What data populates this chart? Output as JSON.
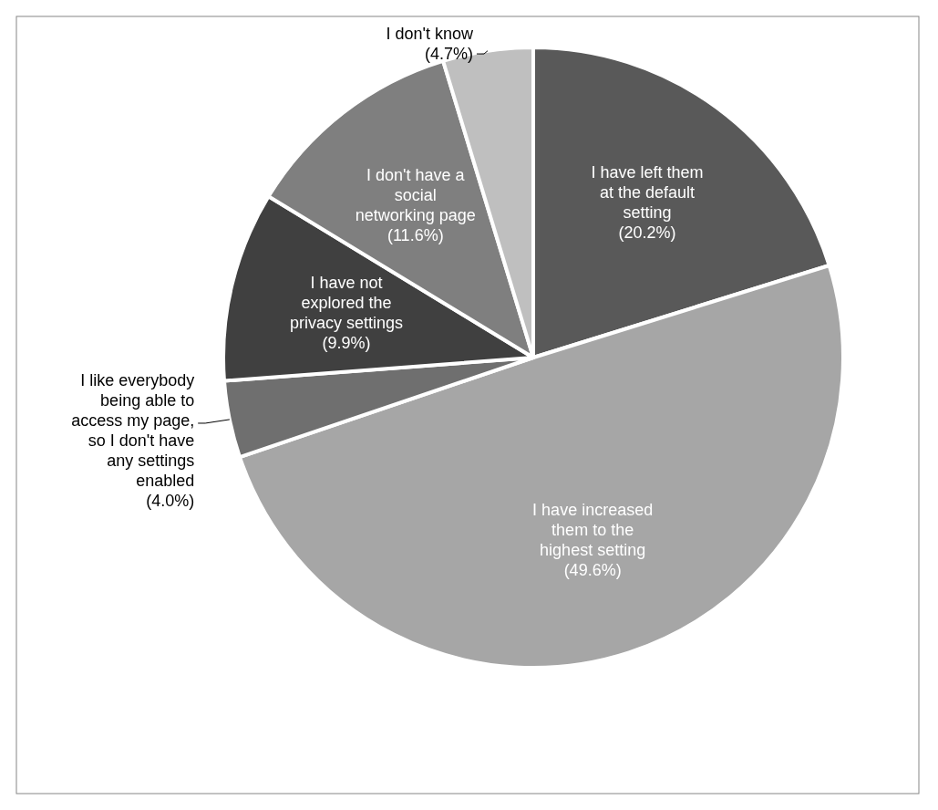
{
  "chart_data": {
    "type": "pie",
    "categories": [
      "I have left them at the default setting",
      "I have increased them to the highest setting",
      "I like everybody being able to access my page, so I don't have any settings enabled",
      "I have not explored the privacy settings",
      "I don't have a social networking page",
      "I don't know"
    ],
    "values": [
      20.2,
      49.6,
      4.0,
      9.9,
      11.6,
      4.7
    ],
    "colors": [
      "#595959",
      "#a6a6a6",
      "#6f6f6f",
      "#404040",
      "#7f7f7f",
      "#bfbfbf"
    ],
    "value_labels": [
      "(20.2%)",
      "(49.6%)",
      "(4.0%)",
      "(9.9%)",
      "(11.6%)",
      "(4.7%)"
    ]
  }
}
